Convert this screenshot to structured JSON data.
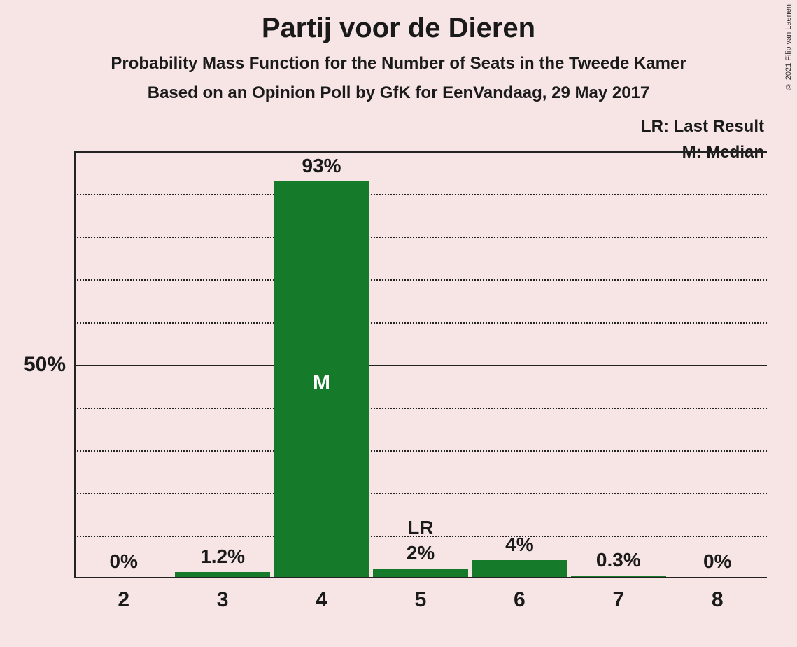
{
  "title": "Partij voor de Dieren",
  "subtitle": "Probability Mass Function for the Number of Seats in the Tweede Kamer",
  "subtitle2": "Based on an Opinion Poll by GfK for EenVandaag, 29 May 2017",
  "copyright": "© 2021 Filip van Laenen",
  "legend": {
    "lr": "LR: Last Result",
    "m": "M: Median"
  },
  "chart": {
    "type": "bar",
    "background_color": "#f7e5e5",
    "bar_color": "#157a2a",
    "text_color": "#1a1a1a",
    "grid_color": "#222222",
    "title_fontsize": 40,
    "subtitle_fontsize": 24,
    "label_fontsize": 28,
    "axis_fontsize": 30,
    "bar_width_ratio": 0.96,
    "ylim": [
      0,
      100
    ],
    "major_ytick": 50,
    "minor_ytick": 10,
    "ylabel_50": "50%",
    "categories": [
      "2",
      "3",
      "4",
      "5",
      "6",
      "7",
      "8"
    ],
    "values_pct": [
      0,
      1.2,
      93,
      2,
      4,
      0.3,
      0
    ],
    "value_labels": [
      "0%",
      "1.2%",
      "93%",
      "2%",
      "4%",
      "0.3%",
      "0%"
    ],
    "annotations": {
      "median_index": 2,
      "median_label": "M",
      "median_label_color": "#ffffff",
      "lr_index": 3,
      "lr_label": "LR"
    }
  }
}
